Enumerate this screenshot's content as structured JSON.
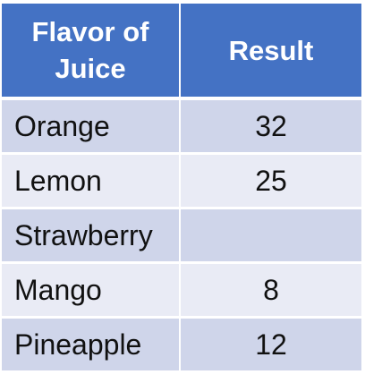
{
  "chart_data": {
    "type": "table",
    "columns": [
      "Flavor of Juice",
      "Result"
    ],
    "rows": [
      {
        "flavor": "Orange",
        "result": "32"
      },
      {
        "flavor": "Lemon",
        "result": "25"
      },
      {
        "flavor": "Strawberry",
        "result": ""
      },
      {
        "flavor": "Mango",
        "result": "8"
      },
      {
        "flavor": "Pineapple",
        "result": "12"
      }
    ]
  },
  "colors": {
    "header_bg": "#4472c4",
    "row_odd_bg": "#cfd5ea",
    "row_even_bg": "#e9ebf5"
  }
}
